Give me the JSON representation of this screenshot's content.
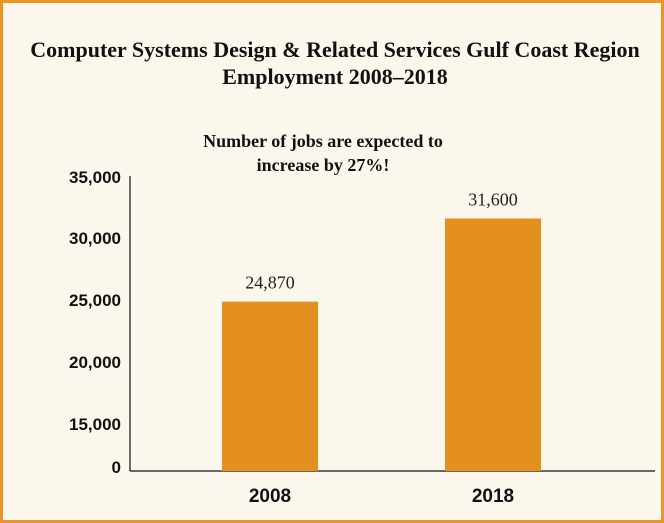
{
  "colors": {
    "border": "#e8962a",
    "background": "#fbf7ec",
    "bar": "#e3901f",
    "axis": "#111111"
  },
  "chart_data": {
    "type": "bar",
    "title": "Computer Systems Design & Related Services Gulf Coast Region Employment 2008–2018",
    "subtitle": "Number of jobs are expected to increase by 27%!",
    "categories": [
      "2008",
      "2018"
    ],
    "values": [
      24870,
      31600
    ],
    "data_labels": [
      "24,870",
      "31,600"
    ],
    "y_ticks": [
      {
        "value": 0,
        "label": "0"
      },
      {
        "value": 15000,
        "label": "15,000"
      },
      {
        "value": 20000,
        "label": "20,000"
      },
      {
        "value": 25000,
        "label": "25,000"
      },
      {
        "value": 30000,
        "label": "30,000"
      },
      {
        "value": 35000,
        "label": "35,000"
      }
    ],
    "ylim": [
      0,
      35000
    ],
    "y_axis_break": true,
    "grid": false,
    "legend": "none"
  }
}
